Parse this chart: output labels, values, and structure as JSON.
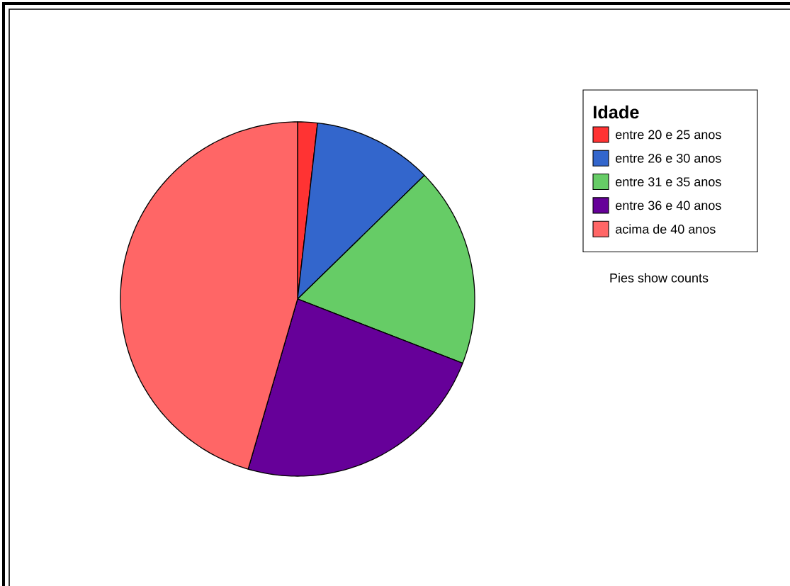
{
  "chart_data": {
    "type": "pie",
    "legend_title": "Idade",
    "categories": [
      "entre 20 e 25 anos",
      "entre 26 e 30 anos",
      "entre 31 e 35 anos",
      "entre 36 e 40 anos",
      "acima de 40 anos"
    ],
    "values": [
      1.8,
      10.9,
      18.2,
      23.6,
      45.5
    ],
    "colors": [
      "#ff3333",
      "#3366cc",
      "#66cc66",
      "#660099",
      "#ff6666"
    ],
    "legend": "top right",
    "annotations": [
      "Pies show counts"
    ]
  }
}
